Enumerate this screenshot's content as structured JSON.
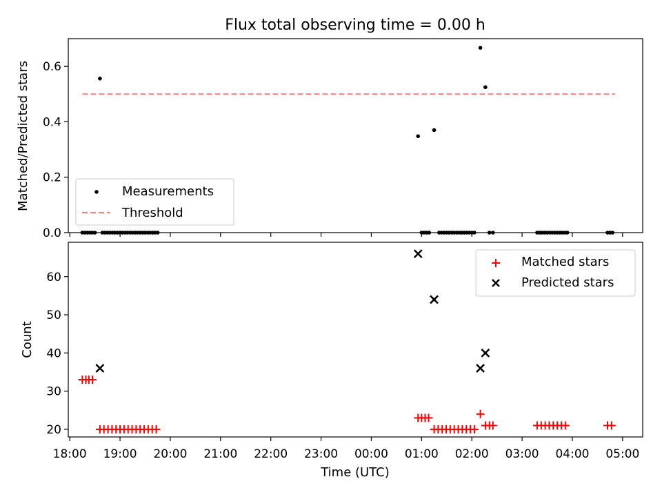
{
  "title": "Flux total observing time = 0.00 h",
  "chart_data": [
    {
      "type": "scatter",
      "ylabel": "Matched/Predicted stars",
      "ylim": [
        0,
        0.7
      ],
      "yticks": [
        0.0,
        0.2,
        0.4,
        0.6
      ],
      "ytick_labels": [
        "0.0",
        "0.2",
        "0.4",
        "0.6"
      ],
      "grid": false,
      "legend_position": "lower-left",
      "series": [
        {
          "name": "Measurements",
          "color": "#000000",
          "marker": "dot",
          "x": [
            18.25,
            18.3,
            18.35,
            18.4,
            18.45,
            18.5,
            18.6,
            18.65,
            18.7,
            18.75,
            18.8,
            18.85,
            18.9,
            18.95,
            19.0,
            19.05,
            19.1,
            19.15,
            19.2,
            19.25,
            19.3,
            19.35,
            19.4,
            19.45,
            19.5,
            19.55,
            19.6,
            19.65,
            19.7,
            19.75,
            24.93,
            25.0,
            25.05,
            25.1,
            25.15,
            25.25,
            25.35,
            25.4,
            25.45,
            25.5,
            25.55,
            25.6,
            25.65,
            25.7,
            25.75,
            25.8,
            25.85,
            25.9,
            25.95,
            26.0,
            26.05,
            26.17,
            26.27,
            26.35,
            26.42,
            27.3,
            27.35,
            27.4,
            27.45,
            27.5,
            27.55,
            27.6,
            27.65,
            27.7,
            27.75,
            27.8,
            27.85,
            27.9,
            28.7,
            28.75,
            28.8
          ],
          "y": [
            0.0,
            0.0,
            0.0,
            0.0,
            0.0,
            0.0,
            0.556,
            0.0,
            0.0,
            0.0,
            0.0,
            0.0,
            0.0,
            0.0,
            0.0,
            0.0,
            0.0,
            0.0,
            0.0,
            0.0,
            0.0,
            0.0,
            0.0,
            0.0,
            0.0,
            0.0,
            0.0,
            0.0,
            0.0,
            0.0,
            0.348,
            0.0,
            0.0,
            0.0,
            0.0,
            0.37,
            0.0,
            0.0,
            0.0,
            0.0,
            0.0,
            0.0,
            0.0,
            0.0,
            0.0,
            0.0,
            0.0,
            0.0,
            0.0,
            0.0,
            0.0,
            0.667,
            0.525,
            0.0,
            0.0,
            0.0,
            0.0,
            0.0,
            0.0,
            0.0,
            0.0,
            0.0,
            0.0,
            0.0,
            0.0,
            0.0,
            0.0,
            0.0,
            0.0,
            0.0,
            0.0
          ]
        },
        {
          "name": "Threshold",
          "color": "#ff7b7b",
          "style": "dashed",
          "x": [
            18.25,
            28.85
          ],
          "y": [
            0.5,
            0.5
          ]
        }
      ]
    },
    {
      "type": "scatter",
      "ylabel": "Count",
      "xlabel": "Time (UTC)",
      "ylim": [
        18,
        69
      ],
      "yticks": [
        20,
        30,
        40,
        50,
        60
      ],
      "ytick_labels": [
        "20",
        "30",
        "40",
        "50",
        "60"
      ],
      "xlim": [
        17.97,
        29.4
      ],
      "xticks": [
        18,
        19,
        20,
        21,
        22,
        23,
        24,
        25,
        26,
        27,
        28,
        29
      ],
      "xtick_labels": [
        "18:00",
        "19:00",
        "20:00",
        "21:00",
        "22:00",
        "23:00",
        "00:00",
        "01:00",
        "02:00",
        "03:00",
        "04:00",
        "05:00"
      ],
      "grid": false,
      "legend_position": "top-right",
      "series": [
        {
          "name": "Matched stars",
          "color": "#ff0000",
          "marker": "plus",
          "x": [
            18.25,
            18.32,
            18.38,
            18.45,
            18.6,
            18.68,
            18.76,
            18.84,
            18.92,
            19.0,
            19.08,
            19.16,
            19.24,
            19.32,
            19.4,
            19.48,
            19.56,
            19.64,
            19.72,
            24.93,
            25.0,
            25.07,
            25.14,
            25.25,
            25.33,
            25.41,
            25.49,
            25.57,
            25.65,
            25.73,
            25.81,
            25.89,
            25.97,
            26.05,
            26.17,
            26.27,
            26.35,
            26.42,
            27.3,
            27.38,
            27.46,
            27.54,
            27.62,
            27.7,
            27.78,
            27.86,
            28.7,
            28.78
          ],
          "y": [
            33,
            33,
            33,
            33,
            20,
            20,
            20,
            20,
            20,
            20,
            20,
            20,
            20,
            20,
            20,
            20,
            20,
            20,
            20,
            23,
            23,
            23,
            23,
            20,
            20,
            20,
            20,
            20,
            20,
            20,
            20,
            20,
            20,
            20,
            24,
            21,
            21,
            21,
            21,
            21,
            21,
            21,
            21,
            21,
            21,
            21,
            21,
            21
          ]
        },
        {
          "name": "Predicted stars",
          "color": "#000000",
          "marker": "x",
          "x": [
            18.6,
            24.93,
            25.25,
            26.17,
            26.27
          ],
          "y": [
            36,
            66,
            54,
            36,
            40
          ]
        }
      ]
    }
  ]
}
